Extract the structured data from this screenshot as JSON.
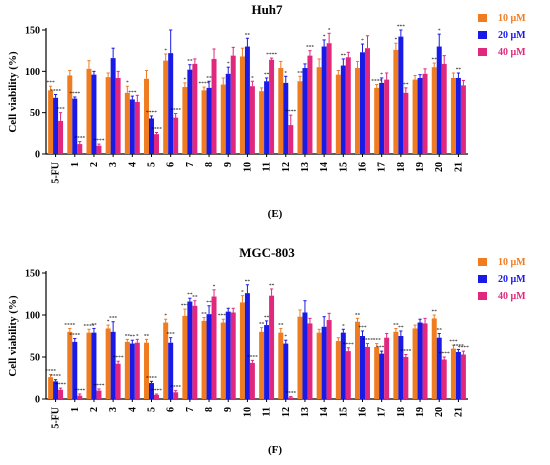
{
  "figure": {
    "panels": [
      {
        "caption": "(E)"
      },
      {
        "caption": "(F)"
      }
    ]
  },
  "chart_data": [
    {
      "type": "bar",
      "title": "Huh7",
      "xlabel": "",
      "ylabel": "Cell viability (%)",
      "ylim": [
        0,
        150
      ],
      "yticks": [
        0,
        50,
        100,
        150
      ],
      "legend_position": "right",
      "categories": [
        "5-FU",
        "1",
        "2",
        "3",
        "4",
        "5",
        "6",
        "7",
        "8",
        "9",
        "10",
        "11",
        "12",
        "13",
        "14",
        "15",
        "16",
        "17",
        "18",
        "19",
        "20",
        "21"
      ],
      "series": [
        {
          "name": "10 μM",
          "color": "#F07C21",
          "values": [
            77,
            95,
            103,
            93,
            74,
            91,
            113,
            81,
            77,
            84,
            118,
            76,
            104,
            88,
            105,
            96,
            104,
            80,
            126,
            90,
            105,
            92
          ],
          "errors": [
            5,
            6,
            10,
            5,
            8,
            10,
            8,
            5,
            4,
            8,
            10,
            4,
            8,
            6,
            10,
            5,
            8,
            4,
            8,
            5,
            5,
            6
          ],
          "sig": [
            "***",
            "",
            "",
            "",
            "*",
            "",
            "*",
            "*",
            "****",
            "",
            "",
            "",
            "",
            "**",
            "",
            "",
            "",
            "****",
            "*",
            "",
            "**",
            ""
          ]
        },
        {
          "name": "20 μM",
          "color": "#1A1AE6",
          "values": [
            68,
            67,
            96,
            116,
            66,
            43,
            122,
            102,
            80,
            97,
            130,
            88,
            86,
            104,
            130,
            107,
            123,
            86,
            142,
            92,
            130,
            92
          ],
          "errors": [
            4,
            2,
            4,
            12,
            4,
            3,
            28,
            6,
            8,
            8,
            10,
            4,
            8,
            5,
            8,
            8,
            10,
            6,
            8,
            4,
            15,
            6
          ],
          "sig": [
            "****",
            "****",
            "",
            "",
            "***",
            "****",
            "",
            "**",
            "**",
            "*",
            "**",
            "**",
            "*",
            "",
            "*",
            "**",
            "*",
            "*",
            "***",
            "",
            "*",
            "**"
          ]
        },
        {
          "name": "40 μM",
          "color": "#E0287E",
          "values": [
            40,
            12,
            10,
            92,
            63,
            24,
            44,
            109,
            115,
            119,
            82,
            114,
            35,
            119,
            134,
            117,
            128,
            90,
            74,
            97,
            109,
            83
          ],
          "errors": [
            10,
            3,
            2,
            8,
            8,
            2,
            5,
            6,
            12,
            10,
            6,
            2,
            12,
            6,
            12,
            6,
            15,
            8,
            6,
            6,
            10,
            6
          ],
          "sig": [
            "***",
            "****",
            "****",
            "",
            "",
            "****",
            "****",
            "",
            "",
            "",
            "*",
            "****",
            "****",
            "***",
            "*",
            "",
            "",
            "",
            "**",
            "",
            "",
            ""
          ]
        }
      ]
    },
    {
      "type": "bar",
      "title": "MGC-803",
      "xlabel": "",
      "ylabel": "Cell viability (%)",
      "ylim": [
        0,
        150
      ],
      "yticks": [
        0,
        50,
        100,
        150
      ],
      "legend_position": "right",
      "categories": [
        "5-FU",
        "1",
        "2",
        "3",
        "4",
        "5",
        "6",
        "7",
        "8",
        "9",
        "10",
        "11",
        "12",
        "13",
        "14",
        "15",
        "16",
        "17",
        "18",
        "19",
        "20",
        "21"
      ],
      "series": [
        {
          "name": "10 μM",
          "color": "#F07C21",
          "values": [
            26,
            80,
            79,
            84,
            68,
            67,
            91,
            99,
            93,
            91,
            115,
            80,
            79,
            98,
            79,
            69,
            92,
            62,
            80,
            84,
            96,
            60
          ],
          "errors": [
            3,
            4,
            4,
            4,
            3,
            4,
            4,
            8,
            4,
            4,
            8,
            5,
            5,
            8,
            4,
            4,
            4,
            4,
            4,
            4,
            4,
            4
          ],
          "sig": [
            "****",
            "****",
            "****",
            "*",
            "**",
            "**",
            "*",
            "***",
            "**",
            "****",
            "*",
            "**",
            "**",
            "",
            "",
            "",
            "**",
            "***",
            "**",
            "",
            "**",
            "***"
          ]
        },
        {
          "name": "20 μM",
          "color": "#1A1AE6",
          "values": [
            21,
            68,
            79,
            80,
            66,
            19,
            67,
            116,
            101,
            104,
            126,
            88,
            66,
            103,
            86,
            79,
            75,
            54,
            75,
            91,
            73,
            56
          ],
          "errors": [
            2,
            4,
            5,
            12,
            4,
            2,
            6,
            4,
            10,
            4,
            10,
            5,
            4,
            14,
            12,
            4,
            6,
            3,
            6,
            4,
            5,
            3
          ],
          "sig": [
            "****",
            "****",
            "**",
            "***",
            "**",
            "****",
            "***",
            "**",
            "**",
            "",
            "**",
            "**",
            "*",
            "",
            "",
            "*",
            "***",
            "****",
            "**",
            "",
            "**",
            "****"
          ]
        },
        {
          "name": "40 μM",
          "color": "#E0287E",
          "values": [
            11,
            4,
            10,
            42,
            67,
            5,
            8,
            111,
            122,
            103,
            43,
            123,
            2,
            90,
            94,
            57,
            62,
            73,
            50,
            90,
            47,
            53
          ],
          "errors": [
            2,
            2,
            2,
            3,
            4,
            1,
            2,
            6,
            8,
            5,
            3,
            8,
            1,
            6,
            8,
            4,
            4,
            5,
            3,
            6,
            3,
            4
          ],
          "sig": [
            "****",
            "****",
            "****",
            "****",
            "*",
            "****",
            "****",
            "**",
            "*",
            "",
            "****",
            "**",
            "****",
            "",
            "",
            "****",
            "****",
            "",
            "****",
            "",
            "****",
            "****"
          ]
        }
      ]
    }
  ]
}
